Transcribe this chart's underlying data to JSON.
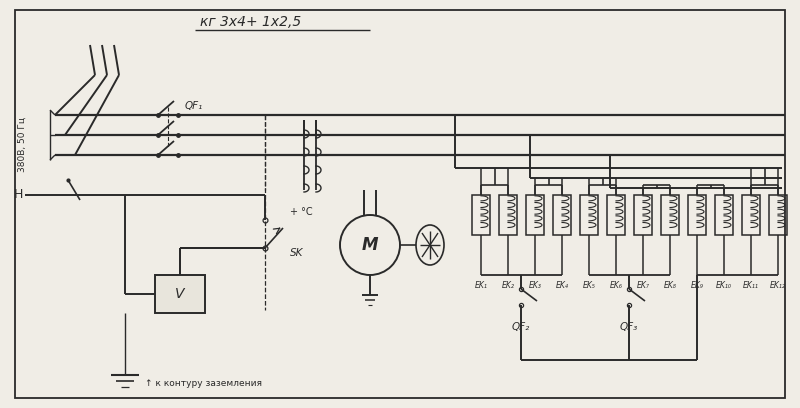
{
  "bg_color": "#f0ede6",
  "line_color": "#2a2a2a",
  "title_cable": "кг 3х4+ 1х2,5",
  "label_380v": "380В, 50 Гц",
  "label_N": "Н",
  "label_temp": "+ °C",
  "label_SK": "SK",
  "label_V": "V",
  "label_QF1": "QF₁",
  "label_QF2": "QF₂",
  "label_QF3": "QF₃",
  "label_M": "M",
  "label_ground": "↑ к контуру заземления",
  "ek_labels": [
    "EK₁",
    "EK₂",
    "EK₃",
    "EK₄",
    "EK₅",
    "EK₆",
    "EK₇",
    "EK₈",
    "EK₉",
    "EK₁₀",
    "EK₁₁",
    "EK₁₂"
  ],
  "lw_main": 1.4,
  "lw_thin": 0.9,
  "fs_main": 7.5,
  "fs_label": 7.0
}
